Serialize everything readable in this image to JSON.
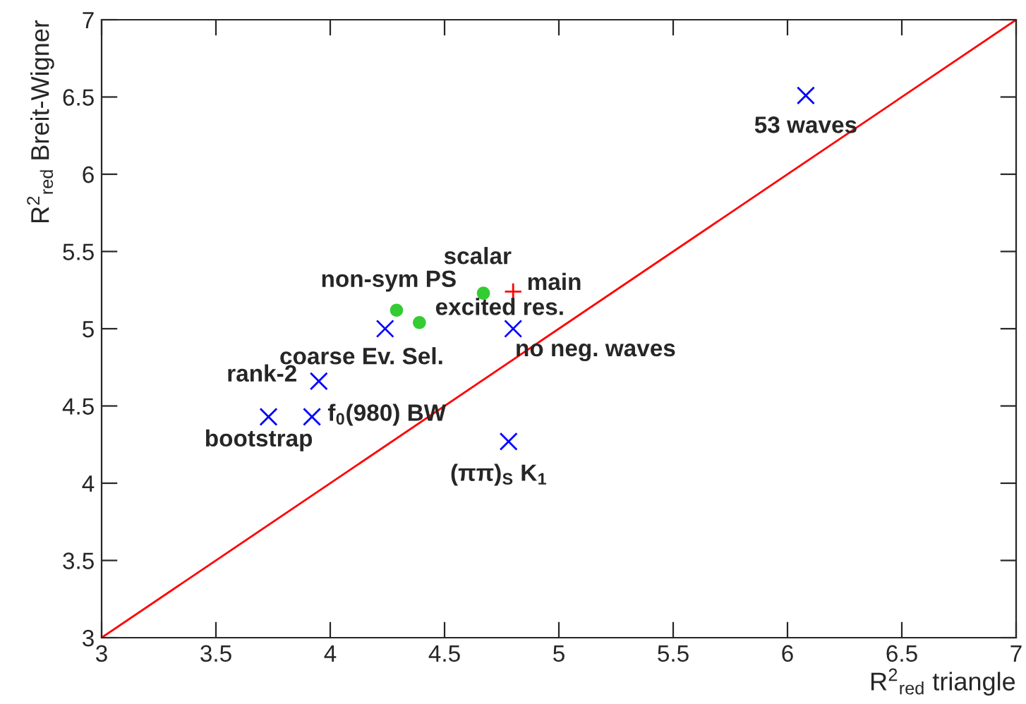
{
  "chart_data": {
    "type": "scatter",
    "xlabel": "R$^{2}$$_{red}$ triangle",
    "ylabel": "R$^{2}$$_{red}$ Breit-Wigner",
    "xlim": [
      3,
      7
    ],
    "ylim": [
      3,
      7
    ],
    "xticks": [
      3,
      3.5,
      4,
      4.5,
      5,
      5.5,
      6,
      6.5,
      7
    ],
    "yticks": [
      3,
      3.5,
      4,
      4.5,
      5,
      5.5,
      6,
      6.5,
      7
    ],
    "grid": false,
    "legend": false,
    "series": [
      {
        "type": "scatter",
        "marker": "cross",
        "color": "#0000ff",
        "x": [
          6.08,
          4.24,
          4.8,
          3.95,
          3.92,
          3.73,
          4.78
        ],
        "values": [
          6.51,
          5.0,
          5.0,
          4.66,
          4.43,
          4.43,
          4.27
        ]
      },
      {
        "type": "scatter",
        "marker": "circle",
        "color": "#33cc33",
        "x": [
          4.67,
          4.29,
          4.39
        ],
        "values": [
          5.23,
          5.12,
          5.04
        ]
      },
      {
        "type": "scatter",
        "marker": "plus",
        "color": "#ff0000",
        "x": [
          4.8
        ],
        "values": [
          5.24
        ]
      },
      {
        "type": "line",
        "color": "#ff0000",
        "x": [
          3,
          7
        ],
        "values": [
          3,
          7
        ]
      }
    ],
    "annotations": [
      {
        "text": "53 waves",
        "x": 6.08,
        "y": 6.51
      },
      {
        "text": "main",
        "x": 4.8,
        "y": 5.24
      },
      {
        "text": "scalar",
        "x": 4.67,
        "y": 5.23
      },
      {
        "text": "non-sym PS",
        "x": 4.29,
        "y": 5.12
      },
      {
        "text": "excited res.",
        "x": 4.39,
        "y": 5.04
      },
      {
        "text": "coarse Ev. Sel.",
        "x": 4.24,
        "y": 5.0
      },
      {
        "text": "no neg. waves",
        "x": 4.8,
        "y": 5.0
      },
      {
        "text": "rank-2",
        "x": 3.95,
        "y": 4.66
      },
      {
        "text": "f$_{0}$(980) BW",
        "x": 3.92,
        "y": 4.43
      },
      {
        "text": "bootstrap",
        "x": 3.73,
        "y": 4.43
      },
      {
        "text": "(ππ)$_{S}$ K$_{1}$",
        "x": 4.78,
        "y": 4.27
      }
    ]
  }
}
